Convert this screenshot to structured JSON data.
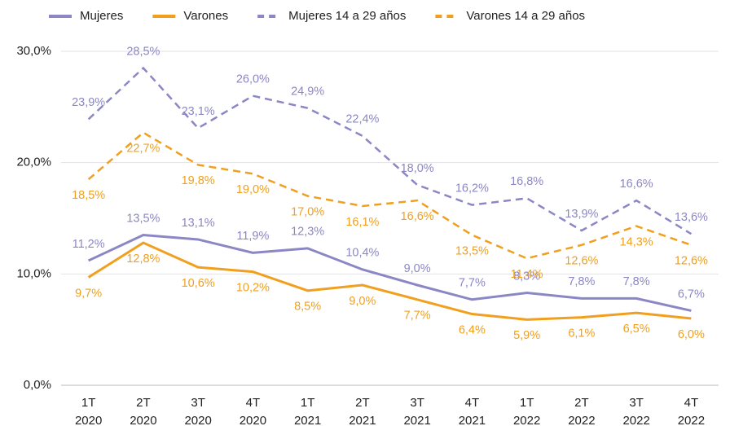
{
  "chart_data": {
    "type": "line",
    "categories": [
      "1T 2020",
      "2T 2020",
      "3T 2020",
      "4T 2020",
      "1T 2021",
      "2T 2021",
      "3T 2021",
      "4T 2021",
      "1T 2022",
      "2T 2022",
      "3T 2022",
      "4T 2022"
    ],
    "series": [
      {
        "name": "Mujeres",
        "color": "#8b87c5",
        "dashed": false,
        "label_side": "above",
        "values": [
          11.2,
          13.5,
          13.1,
          11.9,
          12.3,
          10.4,
          9.0,
          7.7,
          8.3,
          7.8,
          7.8,
          6.7
        ],
        "value_labels": [
          "11,2%",
          "13,5%",
          "13,1%",
          "11,9%",
          "12,3%",
          "10,4%",
          "9,0%",
          "7,7%",
          "8,3%",
          "7,8%",
          "7,8%",
          "6,7%"
        ]
      },
      {
        "name": "Varones",
        "color": "#f0a01e",
        "dashed": false,
        "label_side": "below",
        "values": [
          9.7,
          12.8,
          10.6,
          10.2,
          8.5,
          9.0,
          7.7,
          6.4,
          5.9,
          6.1,
          6.5,
          6.0
        ],
        "value_labels": [
          "9,7%",
          "12,8%",
          "10,6%",
          "10,2%",
          "8,5%",
          "9,0%",
          "7,7%",
          "6,4%",
          "5,9%",
          "6,1%",
          "6,5%",
          "6,0%"
        ]
      },
      {
        "name": "Mujeres 14 a 29 años",
        "color": "#8b87c5",
        "dashed": true,
        "label_side": "above",
        "values": [
          23.9,
          28.5,
          23.1,
          26.0,
          24.9,
          22.4,
          18.0,
          16.2,
          16.8,
          13.9,
          16.6,
          13.6
        ],
        "value_labels": [
          "23,9%",
          "28,5%",
          "23,1%",
          "26,0%",
          "24,9%",
          "22,4%",
          "18,0%",
          "16,2%",
          "16,8%",
          "13,9%",
          "16,6%",
          "13,6%"
        ]
      },
      {
        "name": "Varones 14 a 29 años",
        "color": "#f0a01e",
        "dashed": true,
        "label_side": "below",
        "values": [
          18.5,
          22.7,
          19.8,
          19.0,
          17.0,
          16.1,
          16.6,
          13.5,
          11.4,
          12.6,
          14.3,
          12.6
        ],
        "value_labels": [
          "18,5%",
          "22,7%",
          "19,8%",
          "19,0%",
          "17,0%",
          "16,1%",
          "16,6%",
          "13,5%",
          "11,4%",
          "12,6%",
          "14,3%",
          "12,6%"
        ]
      }
    ],
    "ylim": [
      0,
      30
    ],
    "yticks": [
      {
        "value": 0,
        "label": "0,0%"
      },
      {
        "value": 10,
        "label": "10,0%"
      },
      {
        "value": 20,
        "label": "20,0%"
      },
      {
        "value": 30,
        "label": "30,0%"
      }
    ],
    "grid": true,
    "legend": "top"
  }
}
